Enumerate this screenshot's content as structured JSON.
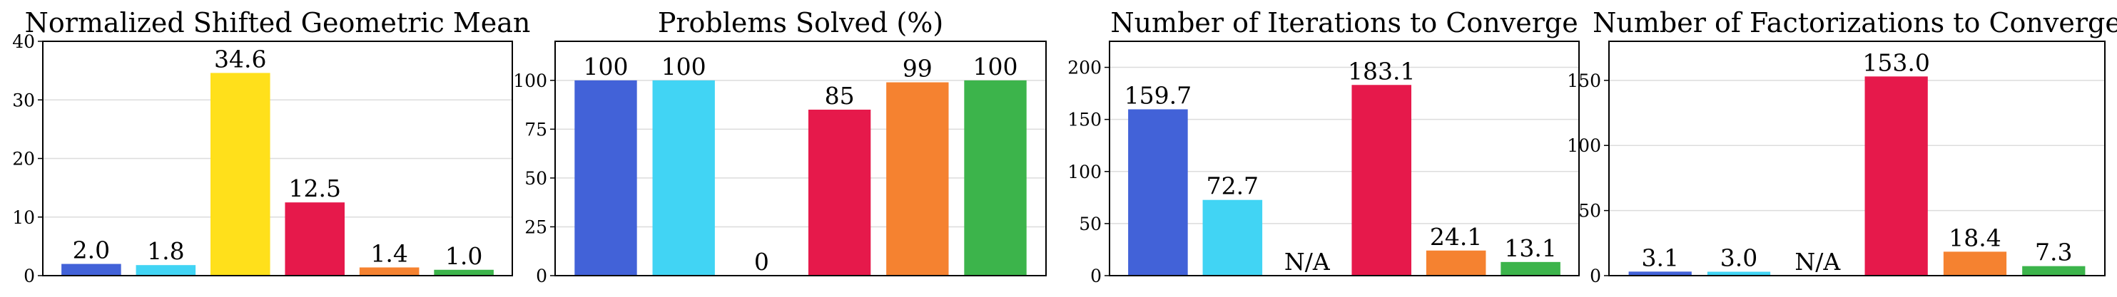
{
  "chart_data": [
    {
      "type": "bar",
      "title": "Normalized Shifted Geometric Mean",
      "ylim": [
        0,
        40
      ],
      "yticks": [
        0,
        10,
        20,
        30,
        40
      ],
      "grid": true,
      "values": [
        2.0,
        1.8,
        34.6,
        12.5,
        1.4,
        1.0
      ],
      "labels": [
        "2.0",
        "1.8",
        "34.6",
        "12.5",
        "1.4",
        "1.0"
      ]
    },
    {
      "type": "bar",
      "title": "Problems Solved (%)",
      "ylim": [
        0,
        120
      ],
      "yticks": [
        0,
        25,
        50,
        75,
        100
      ],
      "grid": true,
      "values": [
        100,
        100,
        0,
        85,
        99,
        100
      ],
      "labels": [
        "100",
        "100",
        "0",
        "85",
        "99",
        "100"
      ]
    },
    {
      "type": "bar",
      "title": "Number of Iterations to Converge",
      "ylim": [
        0,
        225
      ],
      "yticks": [
        0,
        50,
        100,
        150,
        200
      ],
      "grid": true,
      "values": [
        159.7,
        72.7,
        null,
        183.1,
        24.1,
        13.1
      ],
      "labels": [
        "159.7",
        "72.7",
        "N/A",
        "183.1",
        "24.1",
        "13.1"
      ]
    },
    {
      "type": "bar",
      "title": "Number of Factorizations to Converge",
      "ylim": [
        0,
        180
      ],
      "yticks": [
        0,
        50,
        100,
        150
      ],
      "grid": true,
      "values": [
        3.1,
        3.0,
        null,
        153.0,
        18.4,
        7.3
      ],
      "labels": [
        "3.1",
        "3.0",
        "N/A",
        "153.0",
        "18.4",
        "7.3"
      ]
    }
  ],
  "bar_colors": [
    "#4262d8",
    "#41d4f4",
    "#ffe01b",
    "#e6194b",
    "#f58230",
    "#3cb44b"
  ]
}
